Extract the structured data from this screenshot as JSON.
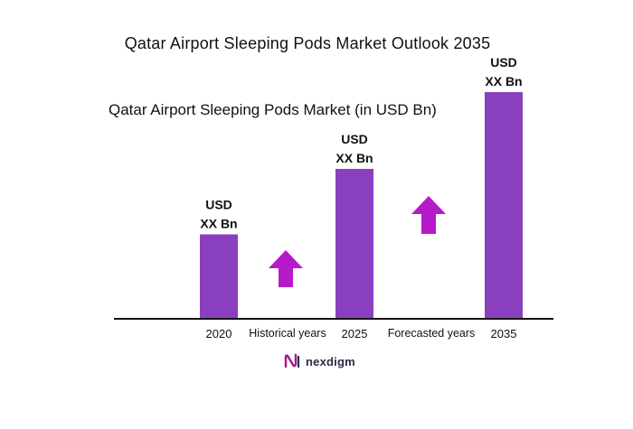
{
  "chart_title": "Qatar Airport Sleeping Pods Market Outlook 2035",
  "chart_subtitle": "Qatar Airport Sleeping Pods Market (in USD Bn)",
  "chart_data": {
    "type": "bar",
    "categories": [
      "2020",
      "2025",
      "2035"
    ],
    "values": [
      0.37,
      0.66,
      1.0
    ],
    "data_labels": [
      [
        "USD",
        "XX Bn"
      ],
      [
        "USD",
        "XX Bn"
      ],
      [
        "USD",
        "XX Bn"
      ]
    ],
    "between_labels": [
      "Historical years",
      "Forecasted years"
    ],
    "bar_color": "#8a3fbf",
    "arrow_color": "#b61bc9",
    "grid": false,
    "legend": "none"
  },
  "logo": {
    "text": "nexdigm",
    "color": "#a5168a"
  }
}
